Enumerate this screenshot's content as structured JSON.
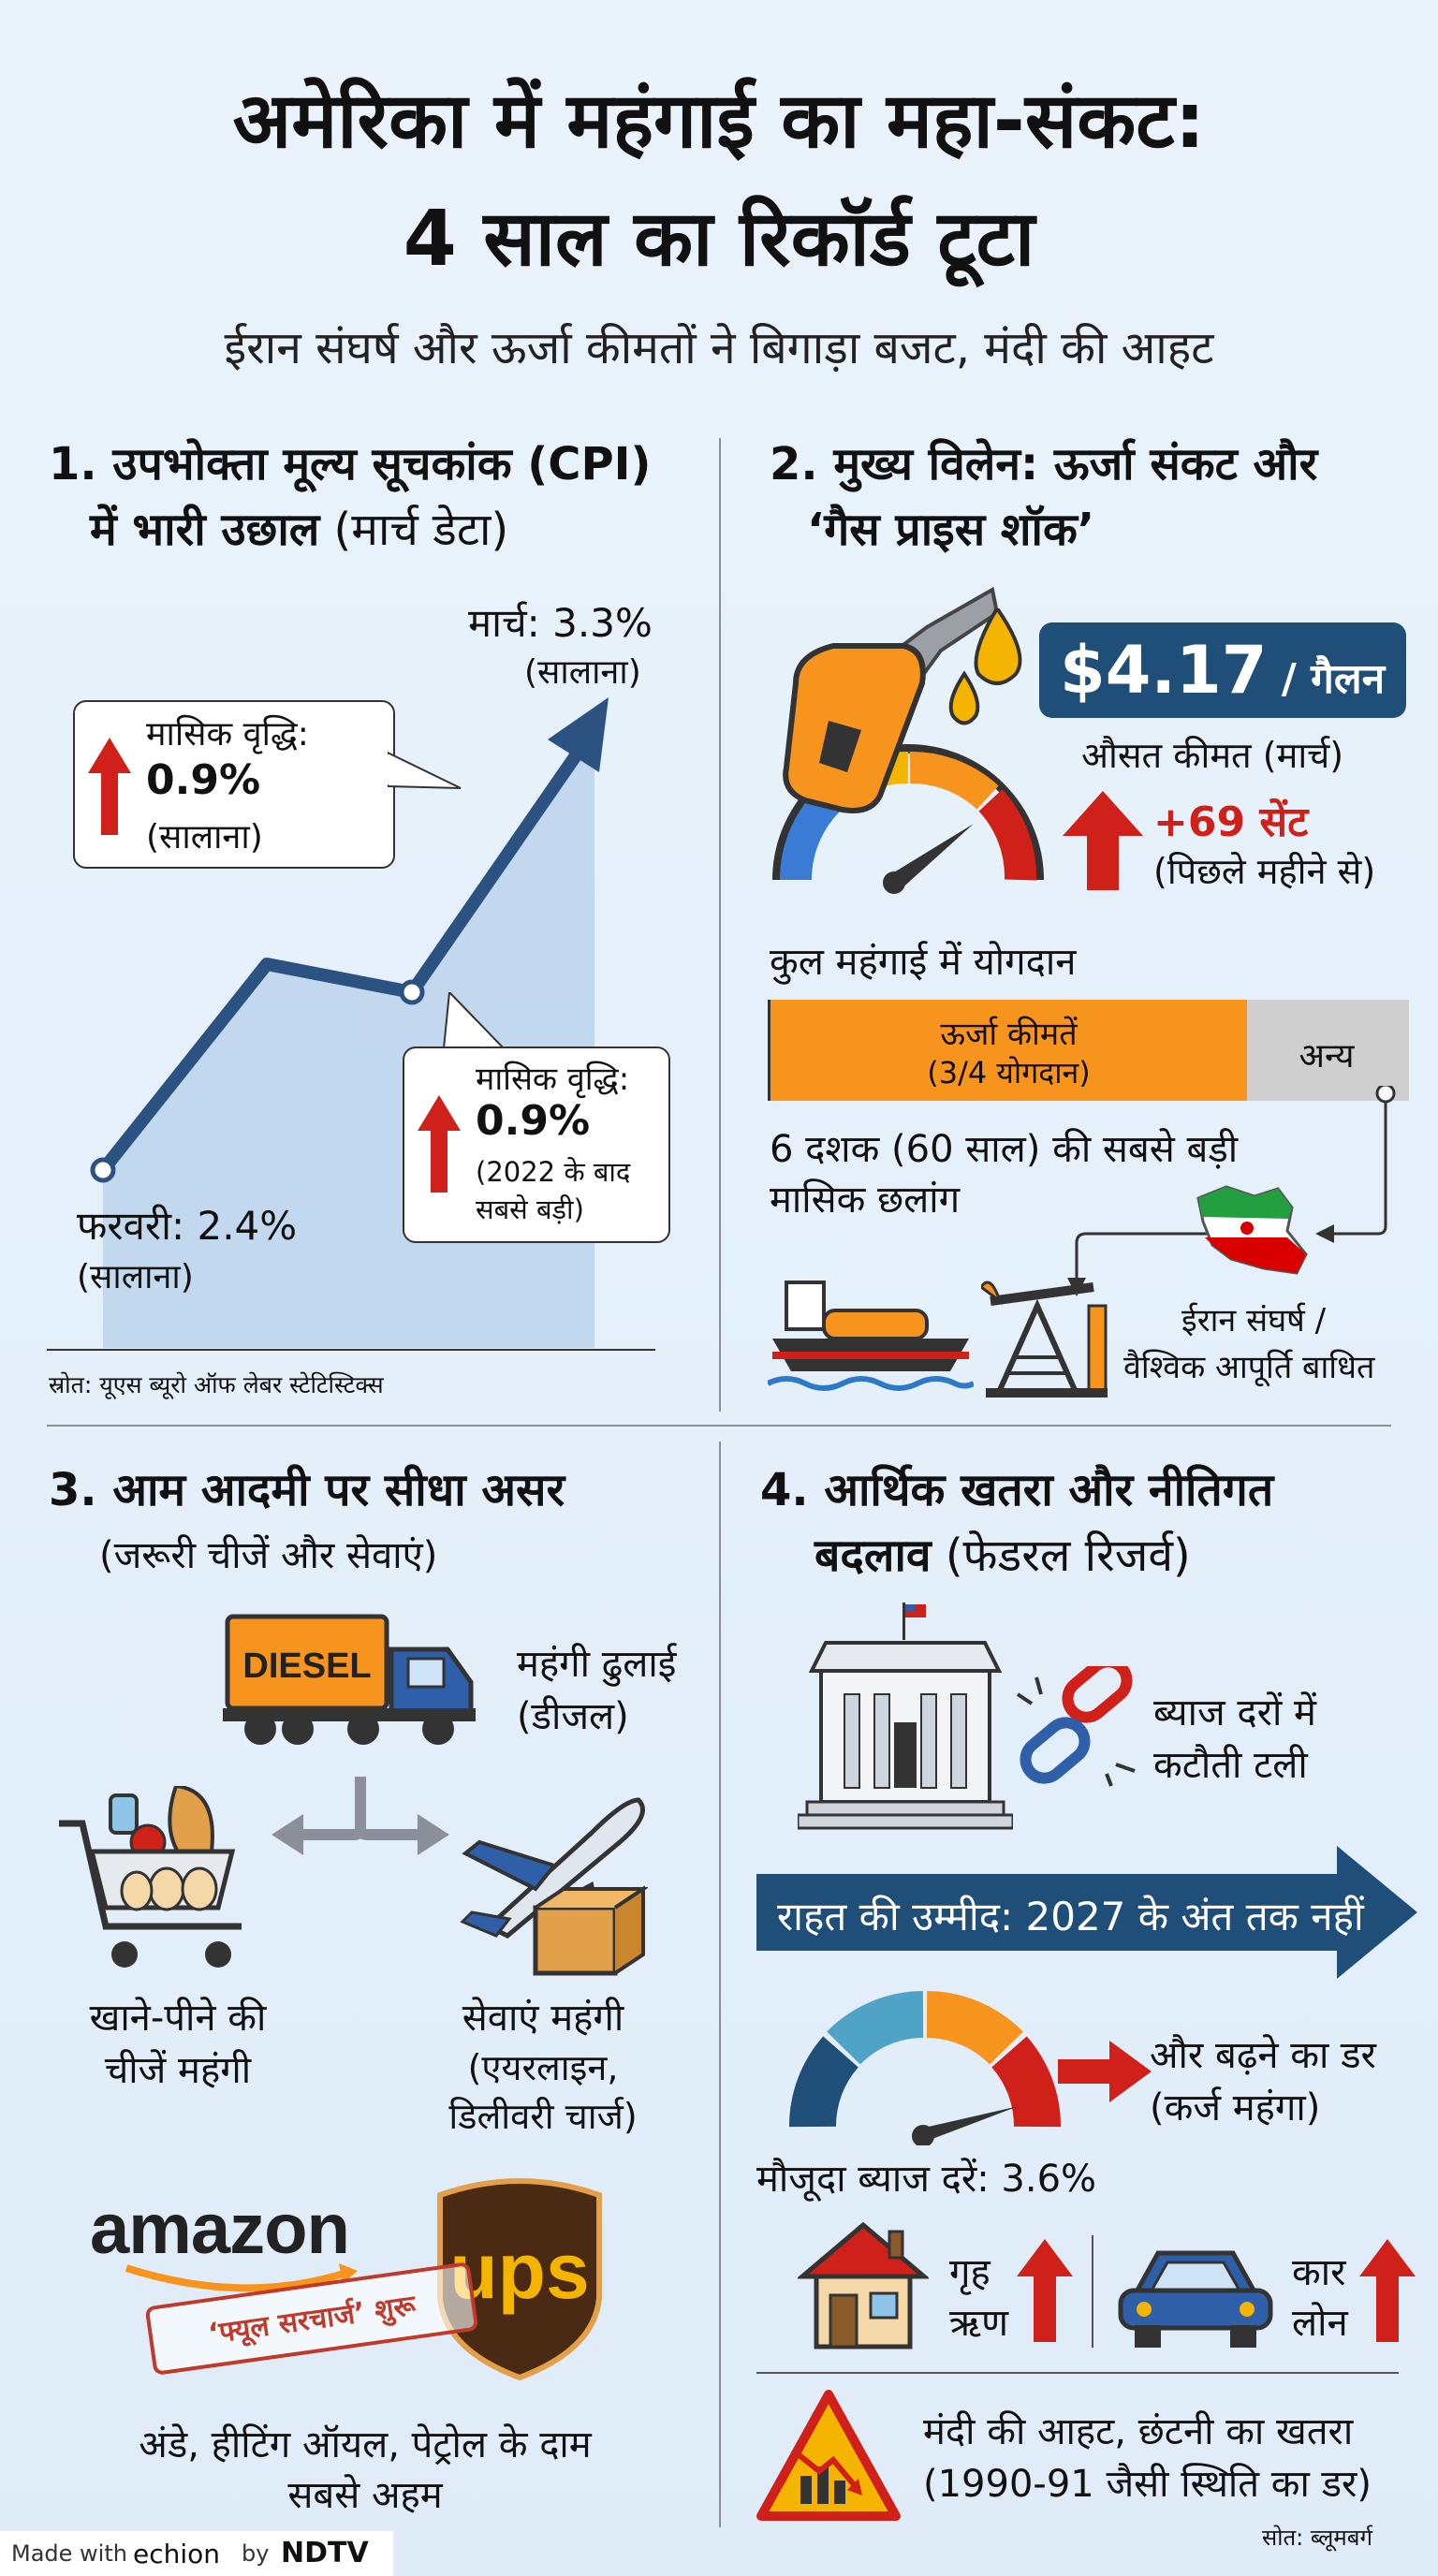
{
  "header": {
    "title_line1": "अमेरिका में महंगाई का महा-संकट:",
    "title_line2": "4 साल का रिकॉर्ड टूटा",
    "subtitle": "ईरान संघर्ष और ऊर्जा कीमतों ने बिगाड़ा बजट, मंदी की आहट"
  },
  "section1": {
    "title_line1": "1. उपभोक्ता मूल्य सूचकांक (CPI)",
    "title_line2_bold": "में भारी उछाल",
    "title_line2_light": " (मार्च डेटा)",
    "march_label": "मार्च: 3.3%",
    "march_sub": "(सालाना)",
    "feb_label": "फरवरी: 2.4%",
    "feb_sub": "(सालाना)",
    "bubble1_title": "मासिक वृद्धि:",
    "bubble1_value": "0.9%",
    "bubble1_note": "(सालाना)",
    "bubble2_title": "मासिक वृद्धि:",
    "bubble2_value": "0.9%",
    "bubble2_note1": "(2022 के बाद",
    "bubble2_note2": "सबसे बड़ी)",
    "source": "स्रोत: यूएस ब्यूरो ऑफ लेबर स्टेटिस्टिक्स",
    "colors": {
      "line": "#2c5282",
      "area": "#b9d3ec",
      "arrow": "#d0201a"
    }
  },
  "section2": {
    "title_line1": "2. मुख्य विलेन: ऊर्जा संकट और",
    "title_line2": "‘गैस प्राइस शॉक’",
    "price_value": "$4.17",
    "price_unit": " / गैलन",
    "price_caption": "औसत कीमत (मार्च)",
    "increase": "+69 सेंट",
    "increase_note": "(पिछले महीने से)",
    "contribution_title": "कुल महंगाई में योगदान",
    "energy_label": "ऊर्जा कीमतें",
    "energy_note": "(3/4 योगदान)",
    "energy_share": 0.75,
    "other_label": "अन्य",
    "decade_line1": "6 दशक (60 साल) की सबसे बड़ी",
    "decade_line2": "मासिक छलांग",
    "iran_line1": "ईरान संघर्ष /",
    "iran_line2": "वैश्विक आपूर्ति बाधित",
    "colors": {
      "price_box": "#1f4e79",
      "energy": "#f7941d",
      "other": "#cfcfcf"
    }
  },
  "section3": {
    "title": "3. आम आदमी पर सीधा असर",
    "subtitle": "(जरूरी चीजें और सेवाएं)",
    "truck_label": "DIESEL",
    "freight_line1": "महंगी ढुलाई",
    "freight_line2": "(डीजल)",
    "food_line1": "खाने-पीने की",
    "food_line2": "चीजें महंगी",
    "services_line1": "सेवाएं महंगी",
    "services_line2": "(एयरलाइन,",
    "services_line3": "डिलीवरी चार्ज)",
    "amazon_logo": "amazon",
    "ups_logo": "ups",
    "surcharge_stamp": "‘फ्यूल सरचार्ज’ शुरू",
    "bottom_line1": "अंडे, हीटिंग ऑयल, पेट्रोल के दाम",
    "bottom_line2": "सबसे अहम"
  },
  "section4": {
    "title_line1": "4. आर्थिक खतरा और नीतिगत",
    "title_line2_bold": "बदलाव",
    "title_line2_light": " (फेडरल रिजर्व)",
    "rate_cut_line1": "ब्याज दरों में",
    "rate_cut_line2": "कटौती टली",
    "relief_banner": "राहत की उम्मीद: 2027 के अंत तक नहीं",
    "fear_line1": "और बढ़ने का डर",
    "fear_line2": "(कर्ज महंगा)",
    "current_rate": "मौजूदा ब्याज दरें: 3.6%",
    "home_loan_line1": "गृह",
    "home_loan_line2": "ऋण",
    "car_loan_line1": "कार",
    "car_loan_line2": "लोन",
    "recession_line1": "मंदी की आहट, छंटनी का खतरा",
    "recession_line2": "(1990-91 जैसी स्थिति का डर)",
    "source": "सोत: ब्लूमबर्ग",
    "colors": {
      "banner": "#1f4e79"
    }
  },
  "footer": {
    "made_with": "Made with",
    "brand": "echion",
    "by": "by",
    "network": "NDTV"
  }
}
